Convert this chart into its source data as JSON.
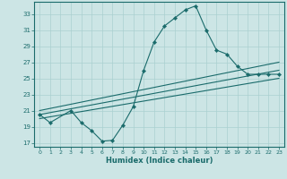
{
  "xlabel": "Humidex (Indice chaleur)",
  "bg_color": "#cce5e5",
  "line_color": "#1a6b6b",
  "grid_color": "#aad0d0",
  "xlim": [
    -0.5,
    23.5
  ],
  "ylim": [
    16.5,
    34.5
  ],
  "yticks": [
    17,
    19,
    21,
    23,
    25,
    27,
    29,
    31,
    33
  ],
  "xticks": [
    0,
    1,
    2,
    3,
    4,
    5,
    6,
    7,
    8,
    9,
    10,
    11,
    12,
    13,
    14,
    15,
    16,
    17,
    18,
    19,
    20,
    21,
    22,
    23
  ],
  "series": [
    {
      "x": [
        0,
        1,
        3,
        4,
        5,
        6,
        7,
        8,
        9,
        10,
        11,
        12,
        13,
        14,
        15,
        16,
        17,
        18,
        19,
        20,
        21,
        22,
        23
      ],
      "y": [
        20.5,
        19.5,
        21.0,
        19.5,
        18.5,
        17.2,
        17.3,
        19.2,
        21.5,
        26.0,
        29.5,
        31.5,
        32.5,
        33.5,
        34.0,
        31.0,
        28.5,
        28.0,
        26.5,
        25.5,
        25.5,
        25.5,
        25.5
      ],
      "marker": true
    },
    {
      "x": [
        0,
        23
      ],
      "y": [
        21.0,
        27.0
      ],
      "marker": false
    },
    {
      "x": [
        0,
        23
      ],
      "y": [
        20.5,
        26.0
      ],
      "marker": false
    },
    {
      "x": [
        0,
        23
      ],
      "y": [
        20.0,
        25.0
      ],
      "marker": false
    }
  ]
}
